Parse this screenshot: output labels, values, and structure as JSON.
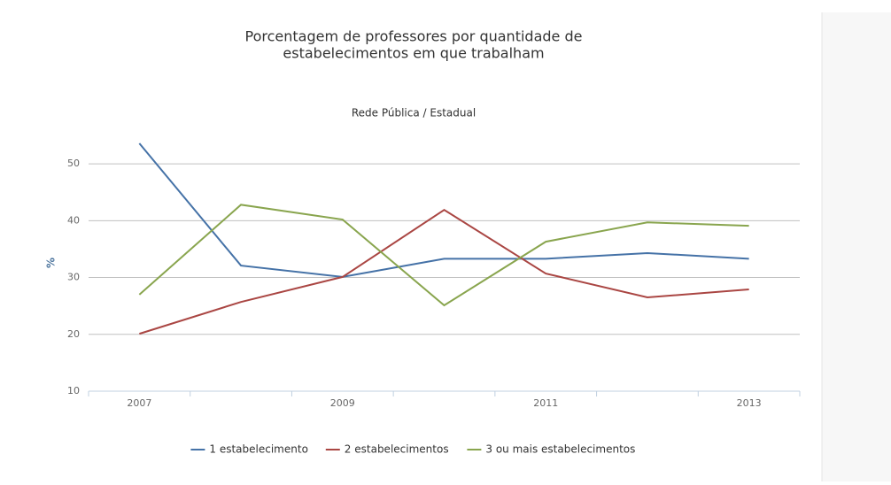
{
  "chart_data": {
    "type": "line",
    "title": [
      "Porcentagem de professores por quantidade de",
      "estabelecimentos em que trabalham"
    ],
    "subtitle": "Rede Pública / Estadual",
    "y_label": "%",
    "categories": [
      "2007",
      null,
      "2009",
      null,
      "2011",
      null,
      "2013"
    ],
    "series": [
      {
        "name": "1 estabelecimento",
        "color": "#4572a7",
        "values": [
          53.6,
          32.1,
          30.1,
          33.3,
          33.3,
          34.3,
          33.3
        ]
      },
      {
        "name": "2 estabelecimentos",
        "color": "#aa4643",
        "values": [
          20.1,
          25.7,
          30.1,
          41.9,
          30.7,
          26.5,
          27.9
        ]
      },
      {
        "name": "3 ou mais estabelecimentos",
        "color": "#89a54e",
        "values": [
          27.0,
          42.8,
          40.2,
          25.1,
          36.3,
          39.7,
          39.1
        ]
      }
    ],
    "ylim": [
      10,
      55
    ],
    "yticks": [
      10,
      20,
      30,
      40,
      50
    ],
    "grid": true,
    "legend": "bottom"
  }
}
